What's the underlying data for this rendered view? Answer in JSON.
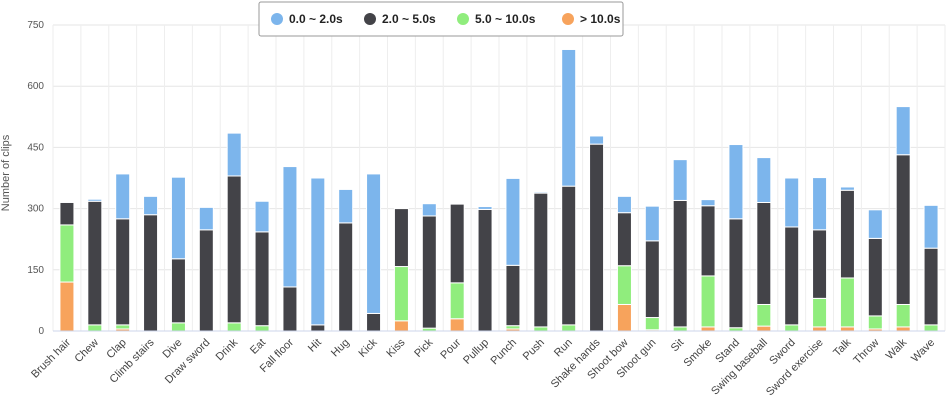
{
  "chart_data": {
    "type": "bar",
    "stacked": true,
    "title": "",
    "xlabel": "",
    "ylabel": "Number of clips",
    "ylim": [
      0,
      750
    ],
    "yticks": [
      0,
      150,
      300,
      450,
      600,
      750
    ],
    "grid": true,
    "legend_position": "top-center",
    "categories": [
      "Brush hair",
      "Chew",
      "Clap",
      "Climb stairs",
      "Dive",
      "Draw sword",
      "Drink",
      "Eat",
      "Fall floor",
      "Hit",
      "Hug",
      "Kick",
      "Kiss",
      "Pick",
      "Pour",
      "Pullup",
      "Punch",
      "Push",
      "Run",
      "Shake hands",
      "Shoot bow",
      "Shoot gun",
      "Sit",
      "Smoke",
      "Stand",
      "Swing baseball",
      "Sword",
      "Sword exercise",
      "Talk",
      "Throw",
      "Walk",
      "Wave"
    ],
    "series": [
      {
        "name": "> 10.0s",
        "color": "#f7a35c",
        "values": [
          120,
          0,
          5,
          0,
          0,
          0,
          0,
          0,
          0,
          0,
          0,
          0,
          25,
          0,
          30,
          0,
          5,
          0,
          0,
          0,
          65,
          3,
          0,
          10,
          0,
          12,
          0,
          10,
          10,
          5,
          10,
          0
        ]
      },
      {
        "name": "5.0 ~ 10.0s",
        "color": "#90ed7d",
        "values": [
          140,
          15,
          10,
          0,
          20,
          0,
          20,
          13,
          0,
          0,
          0,
          0,
          133,
          7,
          88,
          0,
          8,
          10,
          15,
          0,
          95,
          30,
          10,
          125,
          8,
          53,
          15,
          70,
          120,
          32,
          55,
          15
        ]
      },
      {
        "name": "2.0 ~ 5.0s",
        "color": "#434348",
        "values": [
          55,
          303,
          260,
          285,
          157,
          248,
          360,
          230,
          108,
          15,
          265,
          43,
          142,
          275,
          193,
          298,
          148,
          328,
          340,
          458,
          130,
          188,
          310,
          172,
          267,
          250,
          240,
          168,
          215,
          190,
          367,
          188
        ]
      },
      {
        "name": "0.0 ~ 2.0s",
        "color": "#7cb5ec",
        "values": [
          0,
          5,
          110,
          45,
          200,
          55,
          105,
          75,
          295,
          360,
          82,
          342,
          0,
          30,
          0,
          7,
          213,
          3,
          335,
          20,
          40,
          85,
          100,
          15,
          182,
          110,
          120,
          128,
          8,
          70,
          118,
          105
        ]
      }
    ]
  },
  "legend": [
    {
      "label": "0.0 ~ 2.0s",
      "color": "#7cb5ec"
    },
    {
      "label": "2.0 ~ 5.0s",
      "color": "#434348"
    },
    {
      "label": "5.0 ~ 10.0s",
      "color": "#90ed7d"
    },
    {
      "label": "> 10.0s",
      "color": "#f7a35c"
    }
  ]
}
